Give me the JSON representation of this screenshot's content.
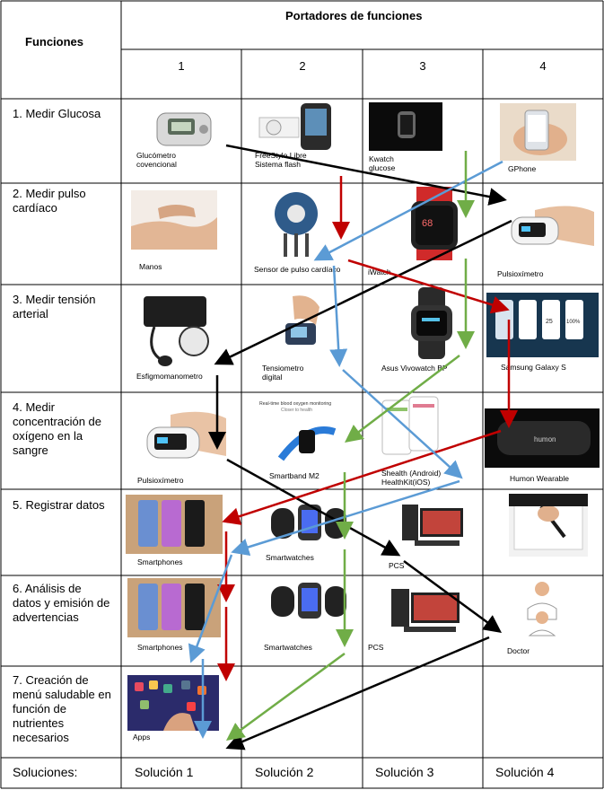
{
  "header": {
    "functions_label": "Funciones",
    "carriers_label": "Portadores de funciones"
  },
  "columns": [
    "1",
    "2",
    "3",
    "4"
  ],
  "functions": [
    "1. Medir Glucosa",
    "2. Medir pulso cardíaco",
    "3. Medir tensión arterial",
    "4. Medir concentración de oxígeno en la sangre",
    "5. Registrar datos",
    "6. Análisis de datos y emisión de advertencias",
    "7. Creación de menú saludable en función de nutrientes necesarios"
  ],
  "carriers": {
    "r1": [
      "Glucómetro covencional",
      "FreeStyle Libre Sistema flash",
      "Kwatch glucose",
      "GPhone"
    ],
    "r2": [
      "Manos",
      "Sensor de pulso cardíaco",
      "iWatch",
      "Pulsioxímetro"
    ],
    "r3": [
      "Esfigmomanometro",
      "Tensiometro digital",
      "Asus Vivowatch BP",
      "Samsung Galaxy S"
    ],
    "r4": [
      "Pulsioxímetro",
      "Smartband M2",
      "Shealth (Android) HealthKit(iOS)",
      "Humon Wearable"
    ],
    "r5": [
      "Smartphones",
      "Smartwatches",
      "PCS"
    ],
    "r6": [
      "Smartphones",
      "Smartwatches",
      "PCS",
      "Doctor"
    ],
    "r7": [
      "Apps"
    ]
  },
  "image_text": {
    "humon": "humon",
    "smartband_header": "Real-time blood oxygen monitoring",
    "smartband_sub": "Closer to health",
    "watch_bpm": "68",
    "pill_25": "25",
    "pill_100": "100%"
  },
  "solutions_label": "Soluciones:",
  "solutions": [
    "Solución 1",
    "Solución 2",
    "Solución 3",
    "Solución 4"
  ],
  "colors": {
    "solution_1": "#000000",
    "solution_2": "#c00000",
    "solution_3": "#5b9bd5",
    "solution_4": "#70ad47"
  }
}
